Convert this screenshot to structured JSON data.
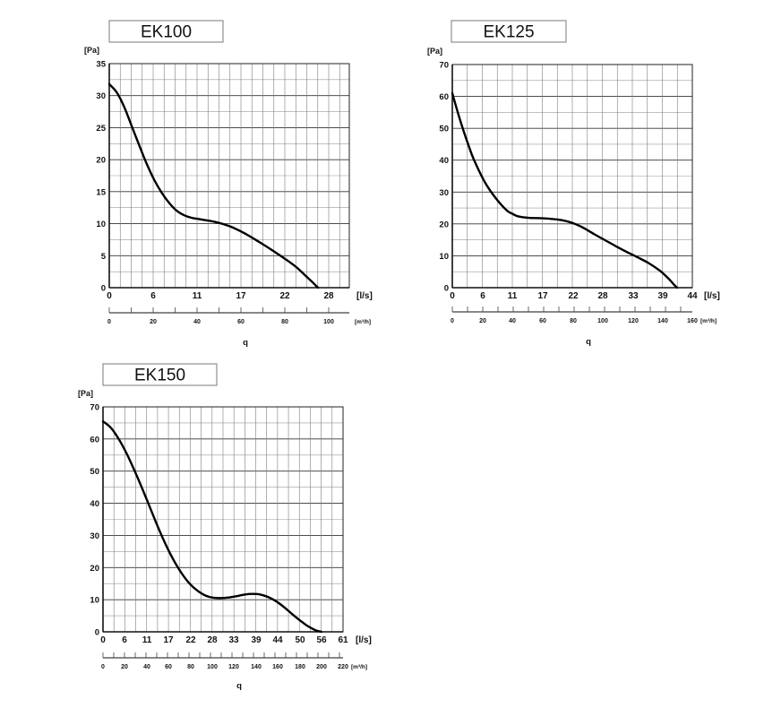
{
  "chart_data": [
    {
      "type": "line",
      "title": "EK100",
      "ylabel": "[Pa]",
      "xlabel": "q",
      "x_unit": "[l/s]",
      "x2_unit": "[m³/h]",
      "ylim": [
        0,
        35
      ],
      "xlim": [
        0,
        31.94
      ],
      "y_ticks": [
        0,
        5,
        10,
        15,
        20,
        25,
        30,
        35
      ],
      "x_ticks": [
        "0",
        "6",
        "11",
        "17",
        "22",
        "28"
      ],
      "x2_ticks": [
        "0",
        "20",
        "40",
        "60",
        "80",
        "100"
      ],
      "grid": true,
      "series": [
        {
          "x": [
            0,
            1,
            2,
            3,
            4,
            5,
            6,
            7,
            8,
            9,
            10,
            11,
            12,
            14,
            16,
            18,
            20,
            22,
            24,
            25,
            26,
            27,
            27.5,
            27.8
          ],
          "y": [
            31.8,
            30.5,
            28.2,
            25.2,
            22.2,
            19.3,
            16.8,
            14.8,
            13.2,
            12.0,
            11.3,
            10.9,
            10.7,
            10.3,
            9.6,
            8.5,
            7.1,
            5.6,
            4.0,
            3.1,
            2.0,
            0.9,
            0.3,
            0
          ]
        }
      ]
    },
    {
      "type": "line",
      "title": "EK125",
      "ylabel": "[Pa]",
      "xlabel": "q",
      "x_unit": "[l/s]",
      "x2_unit": "[m³/h]",
      "ylim": [
        0,
        70
      ],
      "xlim": [
        0,
        44
      ],
      "y_ticks": [
        0,
        10,
        20,
        30,
        40,
        50,
        60,
        70
      ],
      "x_ticks": [
        "0",
        "6",
        "11",
        "17",
        "22",
        "28",
        "33",
        "39",
        "44"
      ],
      "x2_ticks": [
        "0",
        "20",
        "40",
        "60",
        "80",
        "100",
        "120",
        "140",
        "160"
      ],
      "grid": true,
      "series": [
        {
          "x": [
            0,
            1,
            2,
            3,
            4,
            6,
            8,
            10,
            11,
            12,
            14,
            16,
            18,
            20,
            22,
            24,
            26,
            28,
            30,
            32,
            34,
            36,
            38,
            39,
            40,
            40.6,
            41.2
          ],
          "y": [
            61,
            55,
            49.5,
            44.5,
            40,
            33,
            28,
            24.2,
            23.2,
            22.4,
            21.9,
            21.8,
            21.6,
            21.2,
            20.3,
            18.8,
            16.8,
            14.9,
            13,
            11.2,
            9.5,
            7.7,
            5.4,
            3.9,
            2.2,
            1,
            0
          ]
        }
      ]
    },
    {
      "type": "line",
      "title": "EK150",
      "ylabel": "[Pa]",
      "xlabel": "q",
      "x_unit": "[l/s]",
      "x2_unit": "[m³/h]",
      "ylim": [
        0,
        70
      ],
      "xlim": [
        0,
        61
      ],
      "y_ticks": [
        0,
        10,
        20,
        30,
        40,
        50,
        60,
        70
      ],
      "x_ticks": [
        "0",
        "6",
        "11",
        "17",
        "22",
        "28",
        "33",
        "39",
        "44",
        "50",
        "56",
        "61"
      ],
      "x2_ticks": [
        "0",
        "20",
        "40",
        "60",
        "80",
        "100",
        "120",
        "140",
        "160",
        "180",
        "200",
        "220"
      ],
      "grid": true,
      "series": [
        {
          "x": [
            0,
            2,
            4,
            6,
            8,
            10,
            12,
            14,
            16,
            18,
            20,
            22,
            24,
            26,
            28,
            30,
            32,
            34,
            36,
            38,
            40,
            42,
            44,
            46,
            48,
            50,
            52,
            54,
            55.5
          ],
          "y": [
            65.5,
            63.5,
            60,
            55.5,
            50.2,
            44.5,
            38.5,
            32.5,
            27,
            22.2,
            18.2,
            15,
            12.8,
            11.3,
            10.6,
            10.5,
            10.7,
            11.1,
            11.6,
            11.8,
            11.6,
            10.8,
            9.5,
            7.7,
            5.6,
            3.6,
            1.8,
            0.5,
            0
          ]
        }
      ]
    }
  ]
}
